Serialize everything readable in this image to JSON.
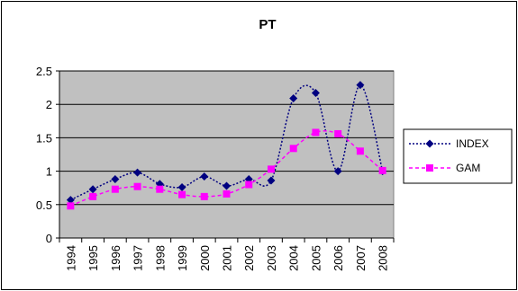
{
  "chart_data": {
    "type": "line",
    "title": "PT",
    "xlabel": "",
    "ylabel": "",
    "categories": [
      "1994",
      "1995",
      "1996",
      "1997",
      "1998",
      "1999",
      "2000",
      "2001",
      "2002",
      "2003",
      "2004",
      "2005",
      "2006",
      "2007",
      "2008"
    ],
    "ylim": [
      0,
      2.5
    ],
    "yticks": [
      0,
      0.5,
      1,
      1.5,
      2,
      2.5
    ],
    "y_tick_labels": [
      "0",
      "0.5",
      "1",
      "1.5",
      "2",
      "2.5"
    ],
    "grid": true,
    "plot_background": "#c0c0c0",
    "legend_position": "right",
    "series": [
      {
        "name": "INDEX",
        "color": "#000080",
        "marker": "diamond",
        "line_style": "dotted",
        "values": [
          0.57,
          0.73,
          0.88,
          0.98,
          0.81,
          0.76,
          0.92,
          0.78,
          0.88,
          0.86,
          2.09,
          2.17,
          1.0,
          2.29,
          1.0
        ]
      },
      {
        "name": "GAM",
        "color": "#ff00ff",
        "marker": "square",
        "line_style": "dashed",
        "values": [
          0.48,
          0.62,
          0.73,
          0.77,
          0.73,
          0.65,
          0.62,
          0.66,
          0.8,
          1.03,
          1.34,
          1.58,
          1.56,
          1.3,
          1.01
        ]
      }
    ]
  }
}
